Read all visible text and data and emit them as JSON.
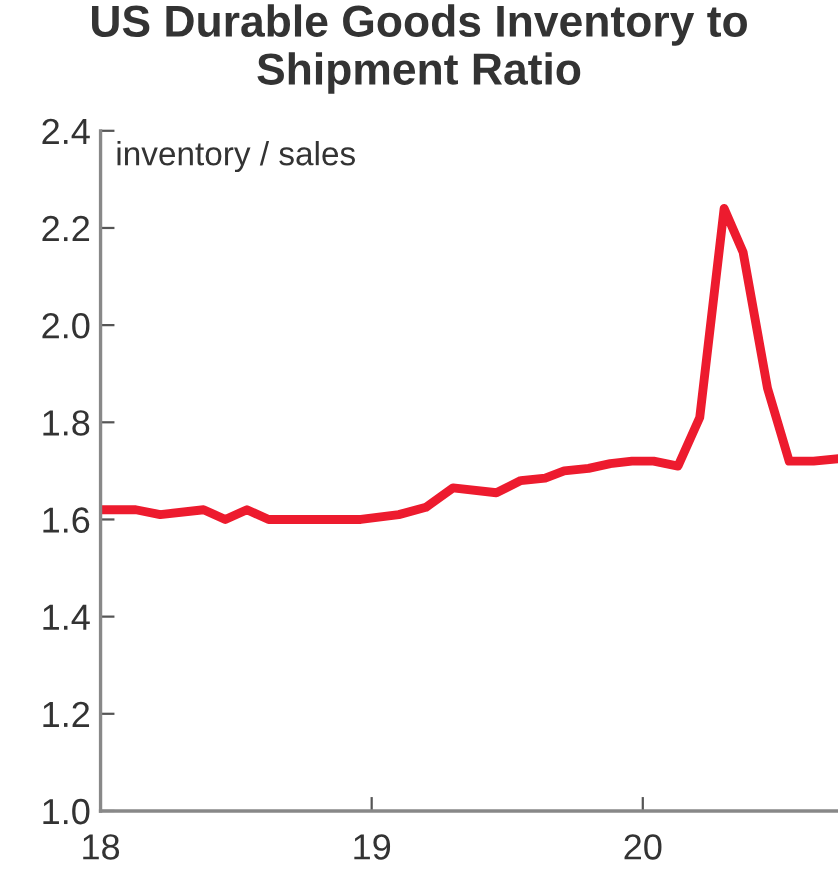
{
  "chart_data": {
    "type": "line",
    "title": "US Durable Goods Inventory to\nShipment Ratio",
    "ylabel": "inventory / sales",
    "x": [
      18.0,
      18.13,
      18.22,
      18.38,
      18.46,
      18.54,
      18.62,
      18.96,
      19.1,
      19.2,
      19.3,
      19.46,
      19.55,
      19.64,
      19.71,
      19.8,
      19.88,
      19.96,
      20.04,
      20.13,
      20.21,
      20.3,
      20.37,
      20.46,
      20.54,
      20.63,
      20.72
    ],
    "series": [
      {
        "color": "#ed1b2e",
        "values": [
          1.62,
          1.62,
          1.61,
          1.62,
          1.6,
          1.62,
          1.6,
          1.6,
          1.61,
          1.625,
          1.665,
          1.655,
          1.68,
          1.685,
          1.7,
          1.705,
          1.715,
          1.72,
          1.72,
          1.71,
          1.81,
          2.24,
          2.15,
          1.87,
          1.72,
          1.72,
          1.725
        ]
      }
    ],
    "xlim": [
      18,
      20.72
    ],
    "xticks": [
      18,
      19,
      20
    ],
    "ylim": [
      1.0,
      2.4
    ],
    "yticks": [
      {
        "value": 1.0,
        "label": "1.0"
      },
      1.2,
      1.4,
      1.6,
      1.8,
      {
        "value": 2.0,
        "label": "2.0"
      },
      2.2,
      2.4
    ],
    "grid": false,
    "legend": false,
    "marker": "none",
    "line_style": "solid"
  }
}
